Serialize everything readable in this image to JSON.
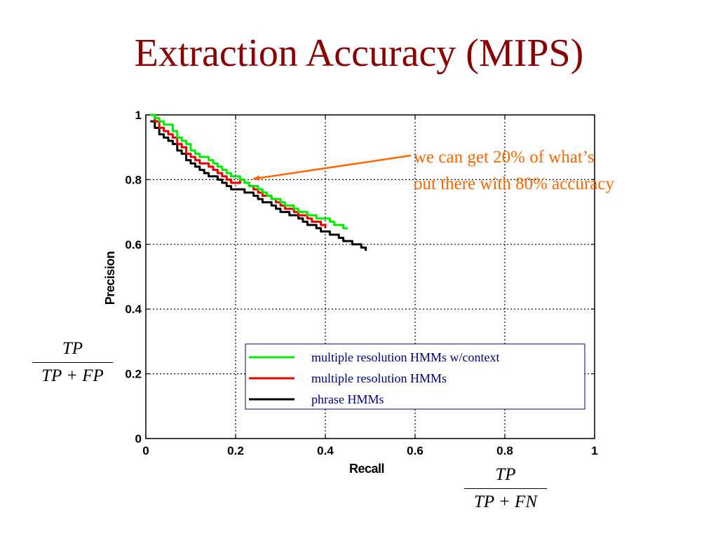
{
  "slide": {
    "title": "Extraction Accuracy (MIPS)",
    "annotation": [
      "we can get 20% of what’s",
      "out there with 80% accuracy"
    ],
    "precision_formula": {
      "numerator": "TP",
      "denominator": "TP + FP"
    },
    "recall_formula": {
      "numerator": "TP",
      "denominator": "TP + FN"
    }
  },
  "chart_data": {
    "type": "line",
    "xlabel": "Recall",
    "ylabel": "Precision",
    "xlim": [
      0,
      1
    ],
    "ylim": [
      0,
      1
    ],
    "xticks": [
      "0",
      "0.2",
      "0.4",
      "0.6",
      "0.8",
      "1"
    ],
    "yticks": [
      "0",
      "0.2",
      "0.4",
      "0.6",
      "0.8",
      "1"
    ],
    "grid": true,
    "legend_position": "lower-right",
    "series": [
      {
        "name": "multiple resolution HMMs w/context",
        "color": "#00ee00",
        "x": [
          0.01,
          0.02,
          0.03,
          0.04,
          0.05,
          0.06,
          0.07,
          0.08,
          0.09,
          0.1,
          0.11,
          0.12,
          0.13,
          0.14,
          0.15,
          0.16,
          0.17,
          0.18,
          0.19,
          0.2,
          0.21,
          0.22,
          0.23,
          0.24,
          0.25,
          0.26,
          0.27,
          0.28,
          0.29,
          0.3,
          0.31,
          0.32,
          0.33,
          0.34,
          0.35,
          0.36,
          0.37,
          0.38,
          0.39,
          0.4,
          0.41,
          0.42,
          0.43,
          0.44,
          0.45
        ],
        "values": [
          1.0,
          0.99,
          0.98,
          0.97,
          0.97,
          0.95,
          0.93,
          0.92,
          0.91,
          0.89,
          0.88,
          0.87,
          0.87,
          0.86,
          0.85,
          0.84,
          0.83,
          0.82,
          0.81,
          0.81,
          0.8,
          0.79,
          0.78,
          0.78,
          0.77,
          0.76,
          0.75,
          0.74,
          0.74,
          0.73,
          0.72,
          0.72,
          0.71,
          0.7,
          0.7,
          0.69,
          0.69,
          0.68,
          0.68,
          0.68,
          0.67,
          0.66,
          0.66,
          0.65,
          0.65
        ]
      },
      {
        "name": "multiple resolution HMMs",
        "color": "#ee0000",
        "x": [
          0.01,
          0.02,
          0.03,
          0.04,
          0.05,
          0.06,
          0.07,
          0.08,
          0.09,
          0.1,
          0.11,
          0.12,
          0.13,
          0.14,
          0.15,
          0.16,
          0.17,
          0.18,
          0.19,
          0.2,
          0.21,
          0.22,
          0.23,
          0.24,
          0.25,
          0.26,
          0.27,
          0.28,
          0.29,
          0.3,
          0.31,
          0.32,
          0.33,
          0.34,
          0.35,
          0.36,
          0.37,
          0.38,
          0.39,
          0.4
        ],
        "values": [
          1.0,
          0.98,
          0.96,
          0.95,
          0.94,
          0.93,
          0.91,
          0.9,
          0.88,
          0.87,
          0.86,
          0.85,
          0.85,
          0.84,
          0.83,
          0.82,
          0.81,
          0.8,
          0.79,
          0.79,
          0.8,
          0.79,
          0.78,
          0.77,
          0.76,
          0.75,
          0.75,
          0.74,
          0.73,
          0.72,
          0.71,
          0.71,
          0.7,
          0.69,
          0.69,
          0.68,
          0.67,
          0.67,
          0.66,
          0.65
        ]
      },
      {
        "name": "phrase HMMs",
        "color": "#000000",
        "x": [
          0.01,
          0.02,
          0.03,
          0.04,
          0.05,
          0.06,
          0.07,
          0.08,
          0.09,
          0.1,
          0.11,
          0.12,
          0.13,
          0.14,
          0.15,
          0.16,
          0.17,
          0.18,
          0.19,
          0.2,
          0.21,
          0.22,
          0.23,
          0.24,
          0.25,
          0.26,
          0.27,
          0.28,
          0.29,
          0.3,
          0.31,
          0.32,
          0.33,
          0.34,
          0.35,
          0.36,
          0.37,
          0.38,
          0.39,
          0.4,
          0.41,
          0.42,
          0.43,
          0.44,
          0.45,
          0.46,
          0.47,
          0.48,
          0.49
        ],
        "values": [
          0.98,
          0.96,
          0.94,
          0.93,
          0.92,
          0.91,
          0.89,
          0.88,
          0.86,
          0.85,
          0.84,
          0.83,
          0.82,
          0.81,
          0.81,
          0.8,
          0.79,
          0.78,
          0.77,
          0.77,
          0.77,
          0.76,
          0.76,
          0.75,
          0.74,
          0.73,
          0.73,
          0.72,
          0.71,
          0.7,
          0.7,
          0.69,
          0.69,
          0.68,
          0.67,
          0.66,
          0.66,
          0.65,
          0.64,
          0.64,
          0.63,
          0.63,
          0.62,
          0.61,
          0.61,
          0.6,
          0.6,
          0.59,
          0.58
        ]
      }
    ],
    "annotation_arrow": {
      "color": "#ff6600",
      "target": {
        "x": 0.23,
        "y": 0.8
      }
    }
  }
}
